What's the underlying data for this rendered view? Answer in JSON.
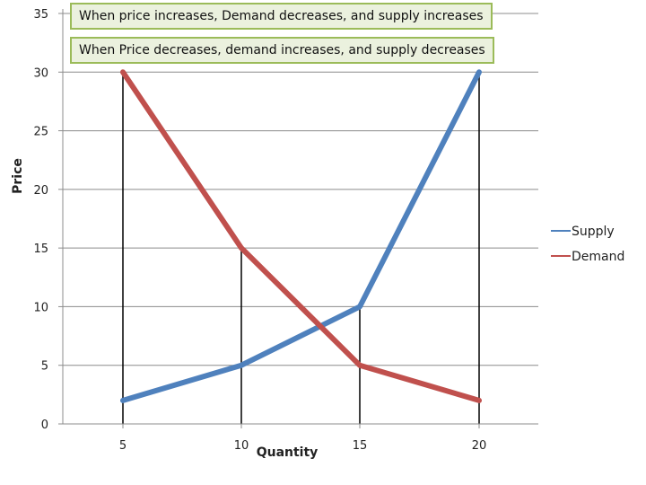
{
  "chart_data": {
    "type": "line",
    "title": "",
    "xlabel": "Quantity",
    "ylabel": "Price",
    "categories": [
      "5",
      "10",
      "15",
      "20"
    ],
    "x": [
      5,
      10,
      15,
      20
    ],
    "yticks": [
      0,
      5,
      10,
      15,
      20,
      25,
      30,
      35
    ],
    "ylim": [
      0,
      35
    ],
    "grid": "horizontal",
    "legend_position": "right",
    "series": [
      {
        "name": "Supply",
        "color": "#4f81bd",
        "values": [
          2,
          5,
          10,
          30
        ]
      },
      {
        "name": "Demand",
        "color": "#c0504d",
        "values": [
          30,
          15,
          5,
          2
        ]
      }
    ],
    "drop_lines": true,
    "annotations": [
      "When price increases, Demand decreases, and supply increases",
      "When Price decreases, demand increases, and supply decreases"
    ]
  }
}
